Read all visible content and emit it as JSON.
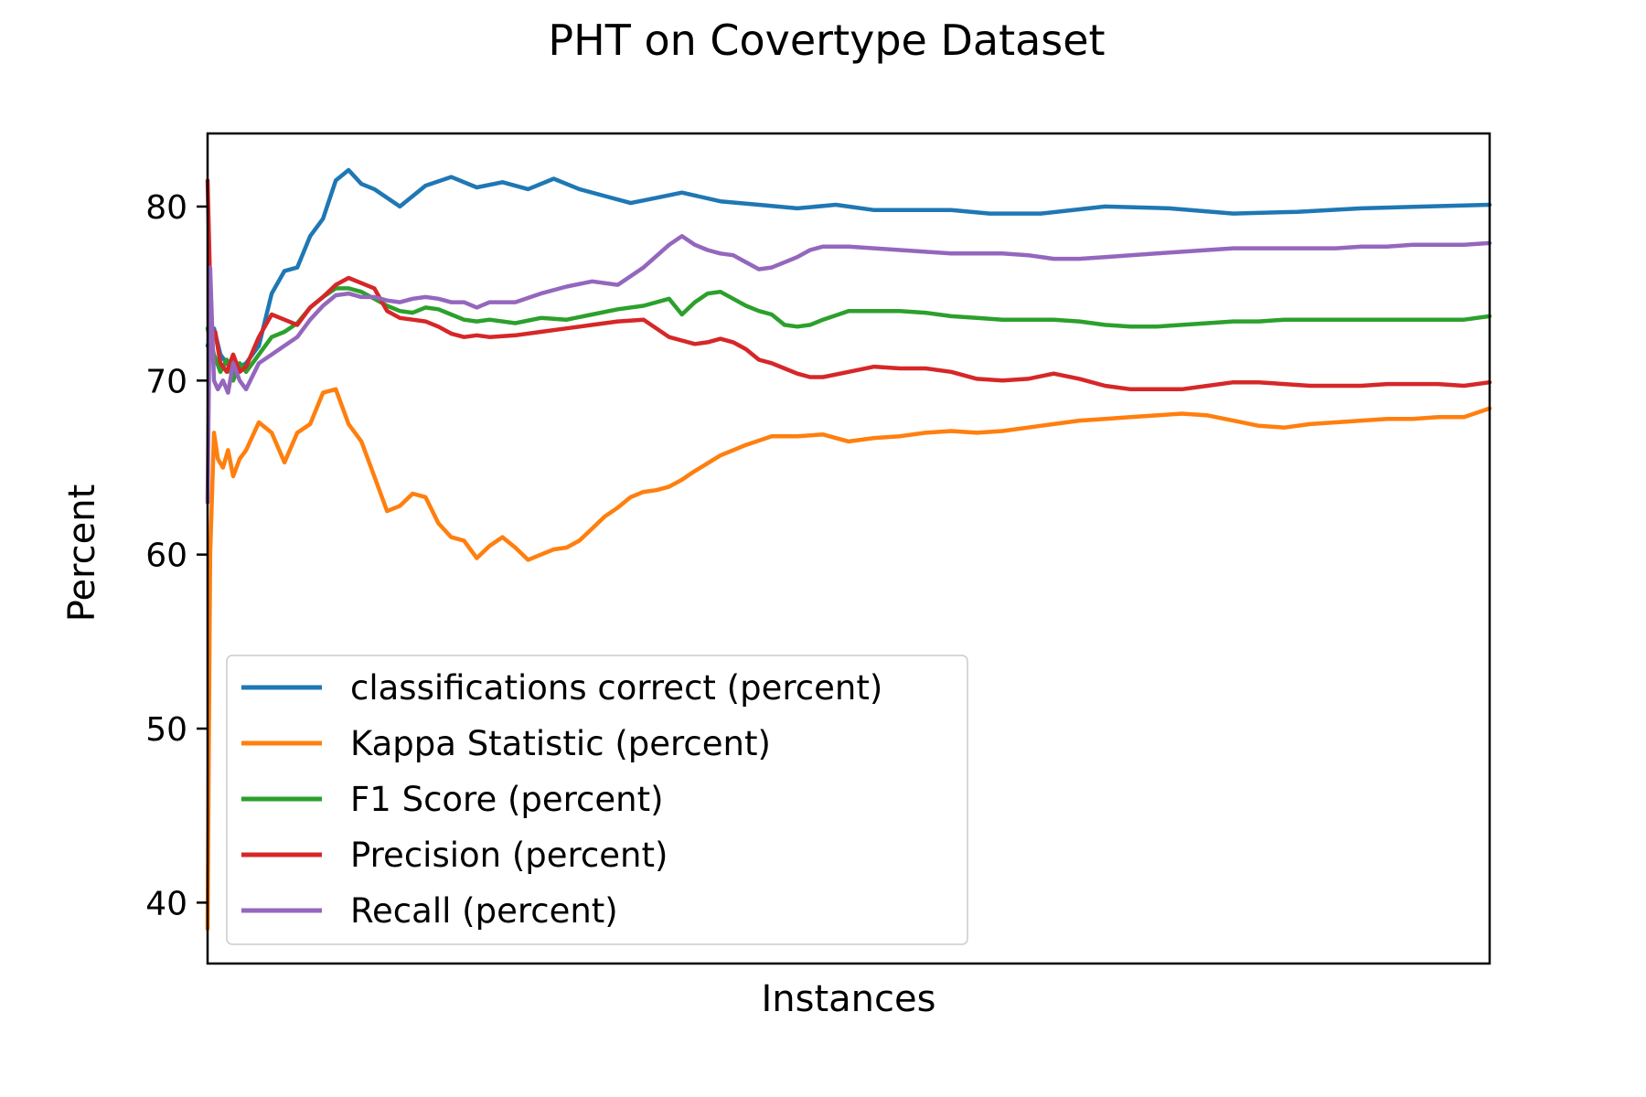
{
  "chart_data": {
    "type": "line",
    "title": "PHT on Covertype Dataset",
    "xlabel": "Instances",
    "ylabel": "Percent",
    "xlim": [
      0,
      100
    ],
    "ylim": [
      36.5,
      84.2
    ],
    "yticks": [
      40,
      50,
      60,
      70,
      80
    ],
    "xticks": [],
    "grid": false,
    "legend_position": "lower-left",
    "series": [
      {
        "name": "classifications correct (percent)",
        "color": "#1f77b4",
        "x": [
          0,
          0.5,
          1,
          2,
          3,
          4,
          5,
          6,
          7,
          8,
          9,
          10,
          11,
          12,
          13,
          14,
          15,
          17,
          19,
          21,
          23,
          25,
          27,
          29,
          31,
          33,
          35,
          37,
          40,
          43,
          46,
          49,
          52,
          55,
          58,
          61,
          65,
          70,
          75,
          80,
          85,
          90,
          95,
          100
        ],
        "y": [
          72,
          73,
          71.5,
          70.5,
          71,
          72,
          75,
          76.3,
          76.5,
          78.3,
          79.3,
          81.5,
          82.1,
          81.3,
          81,
          80.5,
          80,
          81.2,
          81.7,
          81.1,
          81.4,
          81,
          81.6,
          81,
          80.6,
          80.2,
          80.5,
          80.8,
          80.3,
          80.1,
          79.9,
          80.1,
          79.8,
          79.8,
          79.8,
          79.6,
          79.6,
          80,
          79.9,
          79.6,
          79.7,
          79.9,
          80,
          80.1
        ]
      },
      {
        "name": "Kappa Statistic (percent)",
        "color": "#ff7f0e",
        "x": [
          0,
          0.2,
          0.5,
          0.8,
          1.2,
          1.6,
          2,
          2.5,
          3,
          4,
          5,
          6,
          7,
          8,
          9,
          10,
          11,
          12,
          13,
          14,
          15,
          16,
          17,
          18,
          19,
          20,
          21,
          22,
          23,
          24,
          25,
          26,
          27,
          28,
          29,
          30,
          31,
          32,
          33,
          34,
          35,
          36,
          37,
          38,
          40,
          42,
          44,
          46,
          48,
          50,
          52,
          54,
          56,
          58,
          60,
          62,
          64,
          66,
          68,
          70,
          72,
          74,
          76,
          78,
          80,
          82,
          84,
          86,
          88,
          90,
          92,
          94,
          96,
          98,
          100
        ],
        "y": [
          38.5,
          60,
          67,
          65.5,
          65,
          66,
          64.5,
          65.5,
          66,
          67.6,
          67,
          65.3,
          67,
          67.5,
          69.3,
          69.5,
          67.5,
          66.5,
          64.5,
          62.5,
          62.8,
          63.5,
          63.3,
          61.8,
          61,
          60.8,
          59.8,
          60.5,
          61,
          60.4,
          59.7,
          60,
          60.3,
          60.4,
          60.8,
          61.5,
          62.2,
          62.7,
          63.3,
          63.6,
          63.7,
          63.9,
          64.3,
          64.8,
          65.7,
          66.3,
          66.8,
          66.8,
          66.9,
          66.5,
          66.7,
          66.8,
          67,
          67.1,
          67,
          67.1,
          67.3,
          67.5,
          67.7,
          67.8,
          67.9,
          68,
          68.1,
          68,
          67.7,
          67.4,
          67.3,
          67.5,
          67.6,
          67.7,
          67.8,
          67.8,
          67.9,
          67.9,
          68.4
        ]
      },
      {
        "name": "F1 Score (percent)",
        "color": "#2ca02c",
        "x": [
          0,
          0.5,
          1,
          1.5,
          2,
          2.5,
          3,
          4,
          5,
          6,
          7,
          8,
          9,
          10,
          11,
          12,
          13,
          14,
          15,
          16,
          17,
          18,
          19,
          20,
          21,
          22,
          24,
          26,
          28,
          30,
          32,
          34,
          36,
          37,
          38,
          39,
          40,
          41,
          42,
          43,
          44,
          45,
          46,
          47,
          48,
          50,
          52,
          54,
          56,
          58,
          60,
          62,
          64,
          66,
          68,
          70,
          72,
          74,
          76,
          78,
          80,
          82,
          84,
          86,
          88,
          90,
          92,
          94,
          96,
          98,
          100
        ],
        "y": [
          73,
          71.5,
          70.5,
          71.2,
          70,
          71,
          70.5,
          71.5,
          72.5,
          72.8,
          73.3,
          74.2,
          74.8,
          75.3,
          75.3,
          75.1,
          74.7,
          74.3,
          74,
          73.9,
          74.2,
          74.1,
          73.8,
          73.5,
          73.4,
          73.5,
          73.3,
          73.6,
          73.5,
          73.8,
          74.1,
          74.3,
          74.7,
          73.8,
          74.5,
          75,
          75.1,
          74.7,
          74.3,
          74,
          73.8,
          73.2,
          73.1,
          73.2,
          73.5,
          74,
          74,
          74,
          73.9,
          73.7,
          73.6,
          73.5,
          73.5,
          73.5,
          73.4,
          73.2,
          73.1,
          73.1,
          73.2,
          73.3,
          73.4,
          73.4,
          73.5,
          73.5,
          73.5,
          73.5,
          73.5,
          73.5,
          73.5,
          73.5,
          73.7
        ]
      },
      {
        "name": "Precision (percent)",
        "color": "#d62728",
        "x": [
          0,
          0.3,
          0.6,
          1,
          1.5,
          2,
          2.5,
          3,
          4,
          5,
          6,
          7,
          8,
          9,
          10,
          11,
          12,
          13,
          14,
          15,
          16,
          17,
          18,
          19,
          20,
          21,
          22,
          24,
          26,
          28,
          30,
          32,
          34,
          36,
          37,
          38,
          39,
          40,
          41,
          42,
          43,
          44,
          45,
          46,
          47,
          48,
          50,
          52,
          54,
          56,
          58,
          60,
          62,
          64,
          66,
          68,
          70,
          72,
          74,
          76,
          78,
          80,
          82,
          84,
          86,
          88,
          90,
          92,
          94,
          96,
          98,
          100
        ],
        "y": [
          81.5,
          72.5,
          72.8,
          71,
          70.5,
          71.5,
          70.5,
          70.8,
          72.5,
          73.8,
          73.5,
          73.2,
          74.2,
          74.8,
          75.5,
          75.9,
          75.6,
          75.3,
          74,
          73.6,
          73.5,
          73.4,
          73.1,
          72.7,
          72.5,
          72.6,
          72.5,
          72.6,
          72.8,
          73,
          73.2,
          73.4,
          73.5,
          72.5,
          72.3,
          72.1,
          72.2,
          72.4,
          72.2,
          71.8,
          71.2,
          71,
          70.7,
          70.4,
          70.2,
          70.2,
          70.5,
          70.8,
          70.7,
          70.7,
          70.5,
          70.1,
          70,
          70.1,
          70.4,
          70.1,
          69.7,
          69.5,
          69.5,
          69.5,
          69.7,
          69.9,
          69.9,
          69.8,
          69.7,
          69.7,
          69.7,
          69.8,
          69.8,
          69.8,
          69.7,
          69.9
        ]
      },
      {
        "name": "Recall (percent)",
        "color": "#9467bd",
        "x": [
          0,
          0.2,
          0.5,
          0.8,
          1.2,
          1.6,
          2,
          2.5,
          3,
          4,
          5,
          6,
          7,
          8,
          9,
          10,
          11,
          12,
          13,
          14,
          15,
          16,
          17,
          18,
          19,
          20,
          21,
          22,
          24,
          26,
          28,
          30,
          32,
          34,
          36,
          37,
          38,
          39,
          40,
          41,
          42,
          43,
          44,
          45,
          46,
          47,
          48,
          50,
          52,
          54,
          56,
          58,
          60,
          62,
          64,
          66,
          68,
          70,
          72,
          74,
          76,
          78,
          80,
          82,
          84,
          86,
          88,
          90,
          92,
          94,
          96,
          98,
          100
        ],
        "y": [
          63,
          76.5,
          70,
          69.5,
          70,
          69.3,
          71,
          70,
          69.5,
          71,
          71.5,
          72,
          72.5,
          73.5,
          74.3,
          74.9,
          75,
          74.8,
          74.8,
          74.6,
          74.5,
          74.7,
          74.8,
          74.7,
          74.5,
          74.5,
          74.2,
          74.5,
          74.5,
          75,
          75.4,
          75.7,
          75.5,
          76.5,
          77.8,
          78.3,
          77.8,
          77.5,
          77.3,
          77.2,
          76.8,
          76.4,
          76.5,
          76.8,
          77.1,
          77.5,
          77.7,
          77.7,
          77.6,
          77.5,
          77.4,
          77.3,
          77.3,
          77.3,
          77.2,
          77,
          77,
          77.1,
          77.2,
          77.3,
          77.4,
          77.5,
          77.6,
          77.6,
          77.6,
          77.6,
          77.6,
          77.7,
          77.7,
          77.8,
          77.8,
          77.8,
          77.9
        ]
      }
    ]
  }
}
